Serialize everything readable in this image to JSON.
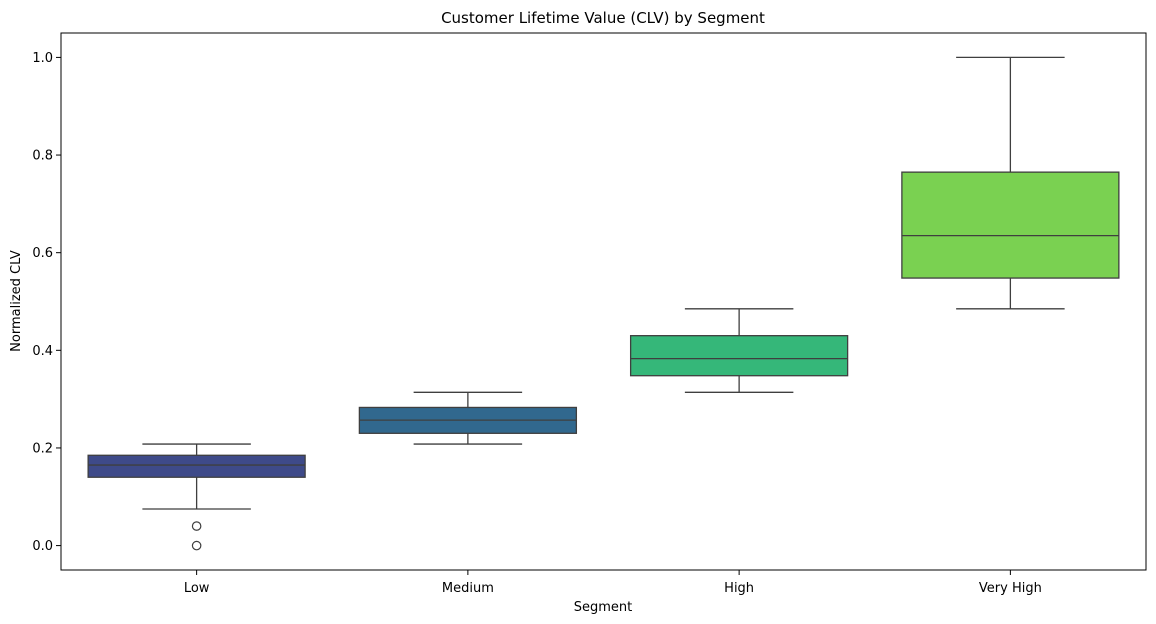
{
  "chart_data": {
    "type": "boxplot",
    "title": "Customer Lifetime Value (CLV) by Segment",
    "xlabel": "Segment",
    "ylabel": "Normalized CLV",
    "ylim": [
      -0.05,
      1.05
    ],
    "yticks": [
      "0.0",
      "0.2",
      "0.4",
      "0.6",
      "0.8",
      "1.0"
    ],
    "grid": false,
    "legend": "none",
    "categories": [
      "Low",
      "Medium",
      "High",
      "Very High"
    ],
    "boxes": [
      {
        "category": "Low",
        "whisker_low": 0.075,
        "q1": 0.14,
        "median": 0.165,
        "q3": 0.185,
        "whisker_high": 0.208,
        "outliers": [
          0.04,
          0.0
        ],
        "color": "#3e4a89"
      },
      {
        "category": "Medium",
        "whisker_low": 0.208,
        "q1": 0.23,
        "median": 0.257,
        "q3": 0.283,
        "whisker_high": 0.314,
        "outliers": [],
        "color": "#31688e"
      },
      {
        "category": "High",
        "whisker_low": 0.314,
        "q1": 0.348,
        "median": 0.383,
        "q3": 0.43,
        "whisker_high": 0.485,
        "outliers": [],
        "color": "#35b779"
      },
      {
        "category": "Very High",
        "whisker_low": 0.485,
        "q1": 0.548,
        "median": 0.635,
        "q3": 0.765,
        "whisker_high": 1.0,
        "outliers": [],
        "color": "#7ad151"
      }
    ]
  }
}
